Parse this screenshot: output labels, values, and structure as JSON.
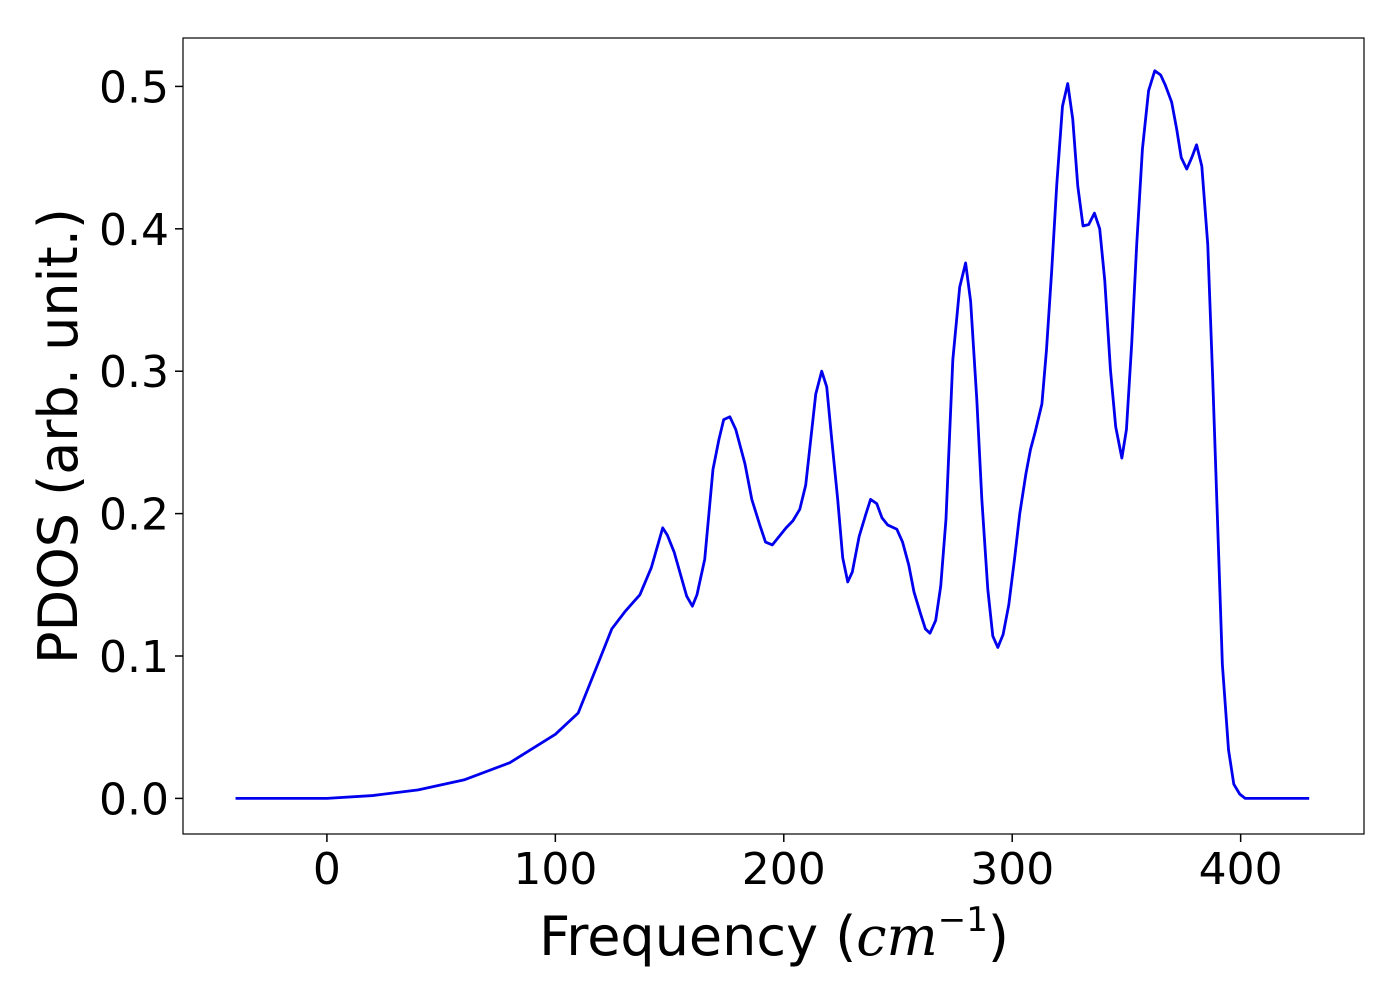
{
  "chart_data": {
    "type": "line",
    "xlabel": [
      "Frequency (",
      "cm",
      "−1",
      ")"
    ],
    "ylabel": "PDOS (arb. unit.)",
    "x": [
      -40,
      0,
      20,
      40,
      60,
      80,
      100,
      110,
      119.5,
      124.7,
      130.4,
      137,
      142,
      147,
      149,
      152,
      157.5,
      160,
      162,
      165.4,
      169,
      171.6,
      173.7,
      176.4,
      179,
      183,
      186,
      189.5,
      192,
      195,
      198,
      201,
      204,
      207,
      209.6,
      214,
      216.6,
      218.8,
      221,
      223.6,
      225.8,
      228,
      230,
      233,
      236,
      238,
      240.7,
      243,
      245.5,
      249.5,
      252,
      254.7,
      257,
      260,
      262,
      264,
      266.5,
      268.7,
      271,
      274,
      277,
      279.6,
      281.8,
      284.5,
      286.7,
      289.3,
      291.5,
      293.7,
      296,
      298.5,
      301,
      303.3,
      306,
      308,
      310,
      313,
      315,
      317.3,
      319.5,
      322,
      324.3,
      326.5,
      328.7,
      331,
      333.5,
      336,
      338.3,
      340.5,
      343,
      345.3,
      348,
      350,
      352.3,
      354.5,
      357,
      359.7,
      362.4,
      365,
      367,
      369.8,
      372,
      374,
      376.4,
      378.6,
      380.7,
      383,
      385.6,
      387.7,
      390,
      392,
      394.7,
      397,
      399.6,
      402,
      430
    ],
    "series": [
      {
        "name": "PDOS",
        "color": "#0000ee",
        "values": [
          0,
          0,
          0.002,
          0.006,
          0.013,
          0.025,
          0.045,
          0.06,
          0.098,
          0.119,
          0.131,
          0.143,
          0.162,
          0.19,
          0.185,
          0.173,
          0.142,
          0.135,
          0.143,
          0.168,
          0.231,
          0.252,
          0.266,
          0.268,
          0.259,
          0.235,
          0.21,
          0.192,
          0.18,
          0.178,
          0.184,
          0.19,
          0.195,
          0.203,
          0.22,
          0.284,
          0.3,
          0.289,
          0.252,
          0.21,
          0.169,
          0.152,
          0.159,
          0.184,
          0.2,
          0.21,
          0.207,
          0.197,
          0.192,
          0.189,
          0.18,
          0.164,
          0.145,
          0.129,
          0.119,
          0.116,
          0.125,
          0.149,
          0.196,
          0.308,
          0.359,
          0.376,
          0.349,
          0.28,
          0.21,
          0.147,
          0.114,
          0.106,
          0.115,
          0.136,
          0.168,
          0.2,
          0.228,
          0.245,
          0.257,
          0.277,
          0.315,
          0.371,
          0.431,
          0.486,
          0.502,
          0.477,
          0.43,
          0.402,
          0.403,
          0.411,
          0.4,
          0.364,
          0.301,
          0.261,
          0.239,
          0.259,
          0.319,
          0.389,
          0.456,
          0.497,
          0.511,
          0.508,
          0.501,
          0.489,
          0.47,
          0.45,
          0.442,
          0.45,
          0.459,
          0.444,
          0.389,
          0.298,
          0.189,
          0.094,
          0.034,
          0.01,
          0.003,
          0,
          0
        ]
      }
    ],
    "xlim": [
      -63,
      454
    ],
    "xticks": [
      0,
      100,
      200,
      300,
      400
    ],
    "ylim": [
      -0.025,
      0.534
    ],
    "yticks": [
      {
        "value": 0,
        "label": "0.0"
      },
      0.1,
      0.2,
      0.3,
      0.4,
      0.5
    ],
    "grid": false
  }
}
